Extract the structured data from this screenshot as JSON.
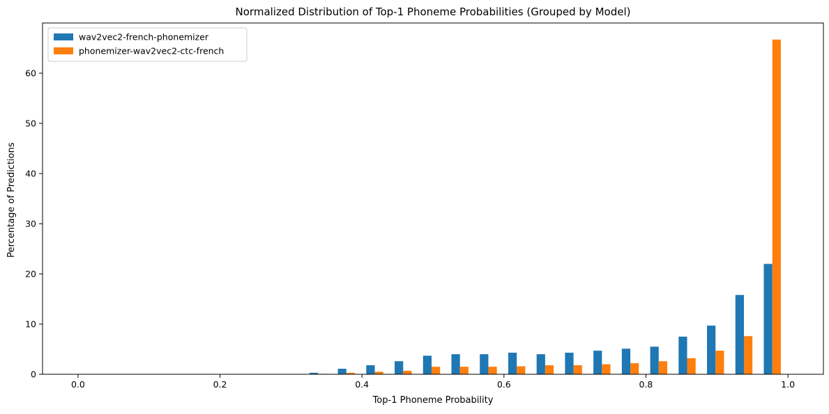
{
  "chart_data": {
    "type": "bar",
    "title": "Normalized Distribution of Top-1 Phoneme Probabilities (Grouped by Model)",
    "xlabel": "Top-1 Phoneme Probability",
    "ylabel": "Percentage of Predictions",
    "xlim": [
      -0.05,
      1.05
    ],
    "ylim": [
      0,
      70
    ],
    "xticks": [
      "0.0",
      "0.2",
      "0.4",
      "0.6",
      "0.8",
      "1.0"
    ],
    "yticks": [
      "0",
      "10",
      "20",
      "30",
      "40",
      "50",
      "60"
    ],
    "bin_width": 0.04,
    "bins": [
      0.32,
      0.36,
      0.4,
      0.44,
      0.48,
      0.52,
      0.56,
      0.6,
      0.64,
      0.68,
      0.72,
      0.76,
      0.8,
      0.84,
      0.88,
      0.92,
      0.96
    ],
    "legend_position": "upper-left",
    "grid": false,
    "series": [
      {
        "name": "wav2vec2-french-phonemizer",
        "color": "#1f77b4",
        "values": [
          0.3,
          1.1,
          1.8,
          2.6,
          3.7,
          4.0,
          4.0,
          4.3,
          4.0,
          4.3,
          4.7,
          5.1,
          5.5,
          7.5,
          9.7,
          15.8,
          22.0
        ]
      },
      {
        "name": "phonemizer-wav2vec2-ctc-french",
        "color": "#ff7f0e",
        "values": [
          0.1,
          0.3,
          0.5,
          0.7,
          1.5,
          1.5,
          1.5,
          1.6,
          1.8,
          1.8,
          2.0,
          2.2,
          2.6,
          3.2,
          4.7,
          7.6,
          66.7
        ]
      }
    ]
  }
}
